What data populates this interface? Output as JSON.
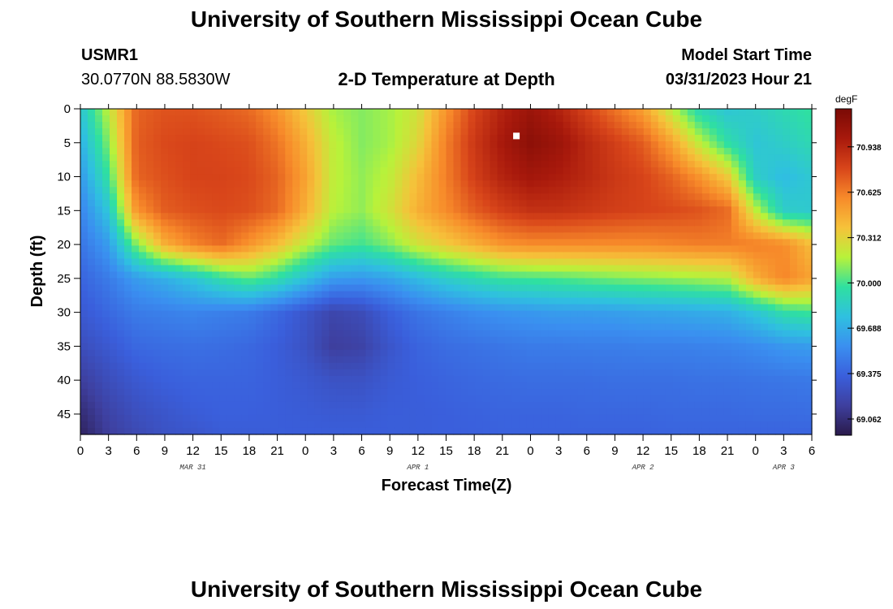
{
  "page": {
    "title_top": "University of Southern Mississippi Ocean Cube",
    "title_bottom": "University of Southern Mississippi Ocean Cube",
    "station": "USMR1",
    "coordinates": "30.0770N  88.5830W",
    "plot_title": "2-D Temperature at Depth",
    "model_label": "Model Start Time",
    "model_time": "03/31/2023 Hour 21"
  },
  "colors": {
    "scale": [
      "#2a1a4a",
      "#3e3f9e",
      "#3a5fdc",
      "#3a8ff0",
      "#2fc0e0",
      "#2fe0a0",
      "#b8f23a",
      "#f6c23a",
      "#f78a2a",
      "#d8451a",
      "#a8190c",
      "#7a0a05"
    ]
  },
  "chart_data": {
    "type": "heatmap",
    "title": "2-D Temperature at Depth",
    "xlabel": "Forecast Time(Z)",
    "ylabel": "Depth (ft)",
    "x_hours_range": [
      0,
      78
    ],
    "x_tick_step_hours": 3,
    "x_tick_labels": [
      "0",
      "3",
      "6",
      "9",
      "12",
      "15",
      "18",
      "21",
      "0",
      "3",
      "6",
      "9",
      "12",
      "15",
      "18",
      "21",
      "0",
      "3",
      "6",
      "9",
      "12",
      "15",
      "18",
      "21",
      "0",
      "3",
      "6"
    ],
    "date_labels": [
      {
        "label": "MAR 31",
        "hour": 12
      },
      {
        "label": "APR 1",
        "hour": 36
      },
      {
        "label": "APR 2",
        "hour": 60
      },
      {
        "label": "APR 3",
        "hour": 75
      }
    ],
    "ylim": [
      0,
      48
    ],
    "y_ticks": [
      0,
      5,
      10,
      15,
      20,
      25,
      30,
      35,
      40,
      45
    ],
    "colorbar": {
      "unit": "degF",
      "range": [
        68.95,
        71.2
      ],
      "tick_values": [
        69.062,
        69.375,
        69.688,
        70.0,
        70.312,
        70.625,
        70.938
      ],
      "tick_labels": [
        "69.062",
        "69.375",
        "69.688",
        "70.000",
        "70.312",
        "70.625",
        "70.938"
      ]
    },
    "marker": {
      "hour": 46.5,
      "depth_ft": 4
    },
    "depth_profile_ft": [
      0,
      5,
      10,
      15,
      20,
      25,
      30,
      35,
      40,
      45,
      48
    ],
    "time_profile_hours": [
      0,
      3,
      6,
      9,
      12,
      15,
      18,
      21,
      24,
      27,
      30,
      33,
      36,
      39,
      42,
      45,
      48,
      51,
      54,
      57,
      60,
      63,
      66,
      69,
      72,
      75,
      78
    ],
    "values_degF": [
      [
        69.8,
        69.7,
        69.6,
        69.52,
        69.45,
        69.38,
        69.32,
        69.25,
        69.15,
        69.05,
        69.0
      ],
      [
        70.2,
        70.1,
        69.98,
        69.8,
        69.62,
        69.48,
        69.4,
        69.32,
        69.25,
        69.18,
        69.15
      ],
      [
        70.7,
        70.72,
        70.7,
        70.55,
        70.1,
        69.62,
        69.48,
        69.4,
        69.32,
        69.26,
        69.22
      ],
      [
        70.75,
        70.78,
        70.76,
        70.72,
        70.45,
        69.7,
        69.5,
        69.42,
        69.36,
        69.3,
        69.28
      ],
      [
        70.75,
        70.8,
        70.8,
        70.76,
        70.6,
        69.8,
        69.52,
        69.43,
        69.38,
        69.34,
        69.3
      ],
      [
        70.72,
        70.78,
        70.8,
        70.78,
        70.68,
        69.95,
        69.5,
        69.42,
        69.38,
        69.36,
        69.34
      ],
      [
        70.68,
        70.76,
        70.78,
        70.76,
        70.55,
        70.05,
        69.48,
        69.4,
        69.38,
        69.36,
        69.34
      ],
      [
        70.55,
        70.65,
        70.7,
        70.68,
        70.4,
        69.95,
        69.4,
        69.35,
        69.35,
        69.35,
        69.35
      ],
      [
        70.35,
        70.45,
        70.5,
        70.45,
        70.2,
        69.78,
        69.3,
        69.28,
        69.32,
        69.34,
        69.35
      ],
      [
        70.15,
        70.2,
        70.2,
        70.18,
        70.05,
        69.62,
        69.2,
        69.15,
        69.28,
        69.33,
        69.35
      ],
      [
        70.1,
        70.1,
        70.12,
        70.12,
        70.0,
        69.6,
        69.24,
        69.18,
        69.28,
        69.33,
        69.35
      ],
      [
        70.15,
        70.15,
        70.2,
        70.25,
        70.1,
        69.65,
        69.36,
        69.3,
        69.33,
        69.35,
        69.35
      ],
      [
        70.25,
        70.3,
        70.4,
        70.45,
        70.25,
        69.75,
        69.45,
        69.38,
        69.36,
        69.35,
        69.35
      ],
      [
        70.55,
        70.62,
        70.62,
        70.58,
        70.35,
        69.85,
        69.5,
        69.42,
        69.38,
        69.36,
        69.36
      ],
      [
        70.8,
        70.85,
        70.82,
        70.72,
        70.45,
        69.92,
        69.55,
        69.44,
        69.4,
        69.37,
        69.36
      ],
      [
        70.95,
        71.0,
        70.95,
        70.82,
        70.55,
        69.98,
        69.58,
        69.46,
        69.41,
        69.38,
        69.37
      ],
      [
        71.05,
        71.12,
        71.02,
        70.88,
        70.58,
        70.0,
        69.6,
        69.48,
        69.42,
        69.38,
        69.37
      ],
      [
        70.95,
        71.05,
        70.98,
        70.88,
        70.58,
        70.02,
        69.62,
        69.48,
        69.42,
        69.38,
        69.37
      ],
      [
        70.8,
        70.92,
        70.92,
        70.85,
        70.58,
        70.05,
        69.62,
        69.49,
        69.42,
        69.39,
        69.37
      ],
      [
        70.65,
        70.82,
        70.85,
        70.82,
        70.58,
        70.08,
        69.63,
        69.49,
        69.43,
        69.39,
        69.37
      ],
      [
        70.5,
        70.72,
        70.8,
        70.8,
        70.58,
        70.1,
        69.65,
        69.5,
        69.43,
        69.39,
        69.37
      ],
      [
        70.2,
        70.5,
        70.7,
        70.78,
        70.6,
        70.12,
        69.66,
        69.5,
        69.43,
        69.4,
        69.38
      ],
      [
        69.9,
        70.2,
        70.55,
        70.75,
        70.62,
        70.15,
        69.68,
        69.51,
        69.44,
        69.4,
        69.38
      ],
      [
        69.8,
        69.95,
        70.35,
        70.68,
        70.62,
        70.18,
        69.7,
        69.52,
        69.44,
        69.4,
        69.38
      ],
      [
        69.85,
        69.8,
        69.85,
        70.2,
        70.62,
        70.45,
        69.8,
        69.55,
        69.45,
        69.41,
        69.38
      ],
      [
        69.92,
        69.85,
        69.75,
        69.85,
        70.58,
        70.6,
        69.95,
        69.6,
        69.46,
        69.41,
        69.38
      ],
      [
        69.98,
        69.92,
        69.82,
        69.82,
        70.4,
        70.5,
        70.0,
        69.62,
        69.47,
        69.42,
        69.38
      ]
    ]
  }
}
